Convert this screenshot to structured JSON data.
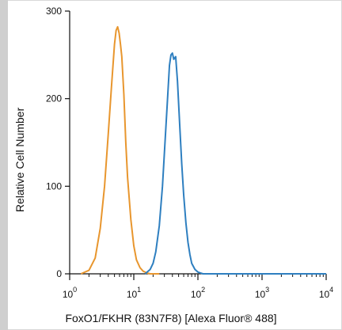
{
  "chart_data": {
    "type": "line",
    "title": "",
    "xlabel": "FoxO1/FKHR (83N7F8) [Alexa Fluor® 488]",
    "ylabel": "Relative Cell Number",
    "x_scale": "log",
    "xlim": [
      1,
      10000
    ],
    "ylim": [
      0,
      300
    ],
    "x_ticks": [
      {
        "base": "10",
        "exp": "0"
      },
      {
        "base": "10",
        "exp": "1"
      },
      {
        "base": "10",
        "exp": "2"
      },
      {
        "base": "10",
        "exp": "3"
      },
      {
        "base": "10",
        "exp": "4"
      }
    ],
    "y_ticks": [
      "0",
      "100",
      "200",
      "300"
    ],
    "grid": false,
    "legend": "none",
    "series": [
      {
        "color": "#e8962e",
        "x": [
          1.5,
          2.0,
          2.5,
          3.0,
          3.5,
          4.0,
          4.5,
          5.0,
          5.3,
          5.6,
          5.9,
          6.2,
          6.5,
          7.0,
          7.5,
          8.0,
          9.0,
          10.0,
          11.0,
          12.5,
          14.0,
          16.0,
          18.0,
          25.0
        ],
        "y": [
          0,
          4,
          18,
          52,
          100,
          160,
          215,
          262,
          278,
          282,
          275,
          262,
          248,
          205,
          150,
          110,
          62,
          32,
          16,
          7,
          3,
          1,
          0,
          0
        ]
      },
      {
        "color": "#2e7fc0",
        "x": [
          15,
          18,
          20,
          22,
          25,
          28,
          30,
          33,
          36,
          38,
          40,
          42,
          45,
          48,
          52,
          56,
          60,
          65,
          70,
          75,
          80,
          90,
          100,
          120,
          140,
          200,
          10000
        ],
        "y": [
          0,
          5,
          12,
          25,
          55,
          100,
          138,
          190,
          238,
          250,
          252,
          245,
          248,
          220,
          170,
          125,
          90,
          58,
          36,
          22,
          12,
          5,
          2,
          0,
          0,
          0,
          0
        ]
      }
    ]
  }
}
